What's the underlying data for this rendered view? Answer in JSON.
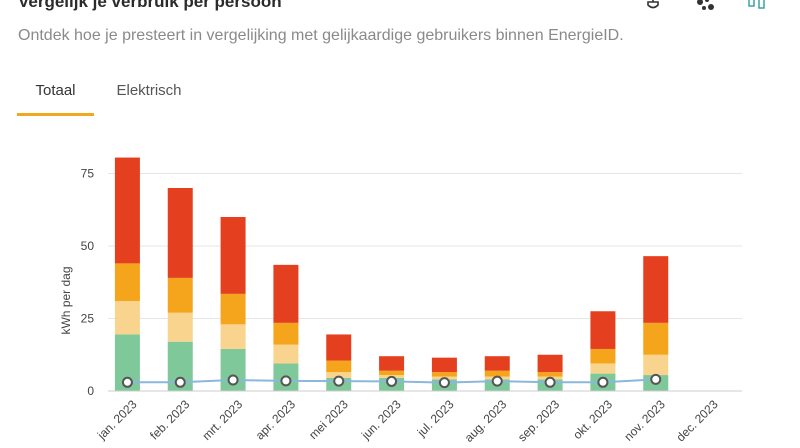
{
  "header": {
    "title": "Vergelijk je verbruik per persoon",
    "subtitle": "Ontdek hoe je presteert in vergelijking met gelijkaardige gebruikers binnen EnergieID."
  },
  "toolbar": {
    "icons": [
      "plug-icon",
      "scatter-icon",
      "box-plot-icon"
    ]
  },
  "tabs": [
    {
      "label": "Totaal",
      "active": true
    },
    {
      "label": "Elektrisch",
      "active": false
    }
  ],
  "chart_data": {
    "type": "bar",
    "stacked": true,
    "ylabel": "kWh per dag",
    "ylim": [
      0,
      90
    ],
    "yticks": [
      0,
      25,
      50,
      75
    ],
    "grid": true,
    "categories": [
      "jan. 2023",
      "feb. 2023",
      "mrt. 2023",
      "apr. 2023",
      "mei 2023",
      "jun. 2023",
      "jul. 2023",
      "aug. 2023",
      "sep. 2023",
      "okt. 2023",
      "nov. 2023",
      "dec. 2023"
    ],
    "series": [
      {
        "color": "#7fc89a",
        "values": [
          19.5,
          17,
          14.5,
          9.5,
          4.5,
          4.5,
          4,
          4,
          4,
          6,
          5.5,
          0
        ]
      },
      {
        "color": "#f9d48e",
        "values": [
          11.5,
          10,
          8.5,
          6.5,
          2,
          1,
          1,
          1,
          1,
          3.5,
          7,
          0
        ]
      },
      {
        "color": "#f5a51c",
        "values": [
          13,
          12,
          10.5,
          7.5,
          4,
          1.5,
          1.5,
          2,
          1.5,
          5,
          11,
          0
        ]
      },
      {
        "color": "#e4401f",
        "values": [
          36.5,
          31,
          26.5,
          20,
          9,
          5,
          5,
          5,
          6,
          13,
          23,
          0
        ]
      }
    ],
    "line": {
      "color": "#8ab7dc",
      "values": [
        3,
        3,
        3.8,
        3.5,
        3.4,
        3.3,
        2.9,
        3.4,
        3,
        3,
        4,
        null
      ]
    }
  }
}
